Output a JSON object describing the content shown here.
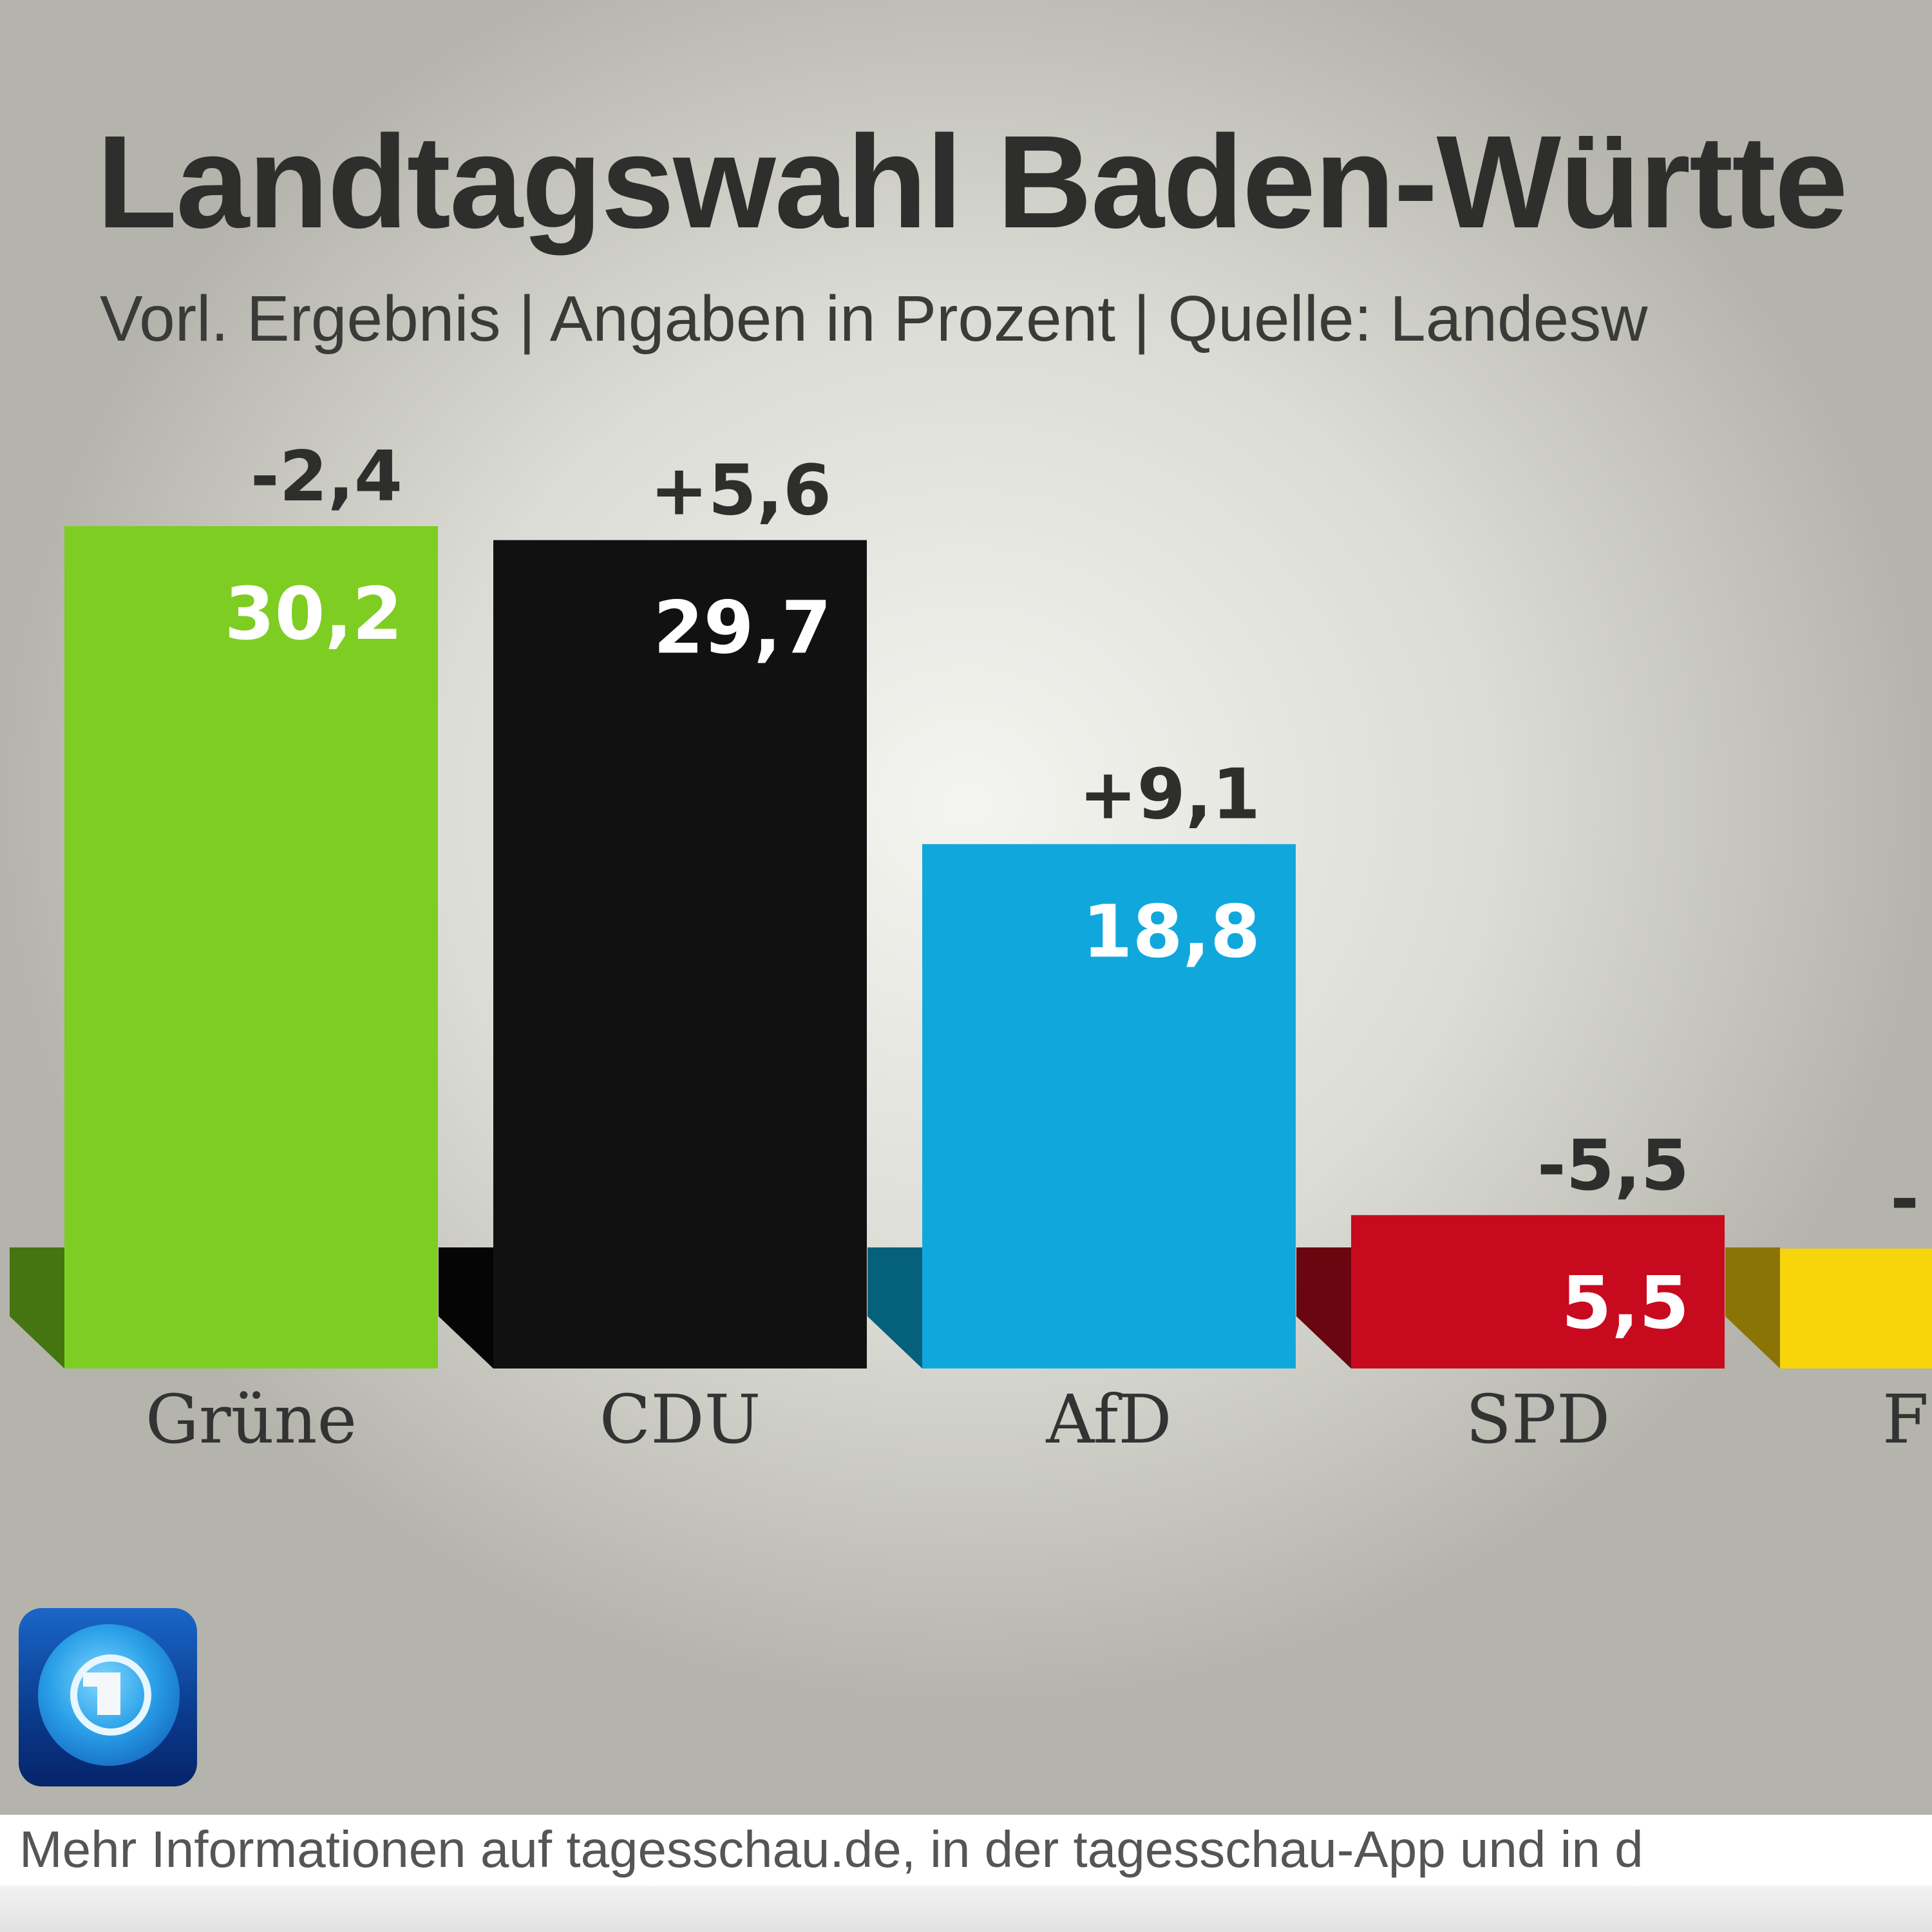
{
  "title": "Landtagswahl Baden-Württe",
  "subtitle": "Vorl. Ergebnis | Angaben in Prozent | Quelle: Landesw",
  "footer": "Mehr Informationen auf tagesschau.de, in der tagesschau-App und in d",
  "logo": {
    "icon": "tagesschau-globe-logo",
    "color": "#0a3a8c"
  },
  "chart_data": {
    "type": "bar",
    "title": "Landtagswahl Baden-Württe",
    "subtitle": "Vorl. Ergebnis | Angaben in Prozent | Quelle: Landesw",
    "categories": [
      "Grüne",
      "CDU",
      "AfD",
      "SPD",
      "F"
    ],
    "values": [
      30.2,
      29.7,
      18.8,
      5.5,
      4.3
    ],
    "value_labels": [
      "30,2",
      "29,7",
      "18,8",
      "5,5",
      null
    ],
    "change_labels": [
      "-2,4",
      "+5,6",
      "+9,1",
      "-5,5",
      "-"
    ],
    "colors": [
      "#7ecd22",
      "#111111",
      "#10a8dc",
      "#c80a1e",
      "#f8d40a"
    ],
    "shadow_colors": [
      "#457510",
      "#050505",
      "#05607c",
      "#6a0610",
      "#8a7406"
    ],
    "ylim": [
      0,
      30.2
    ],
    "grid": false,
    "legend": "none"
  }
}
